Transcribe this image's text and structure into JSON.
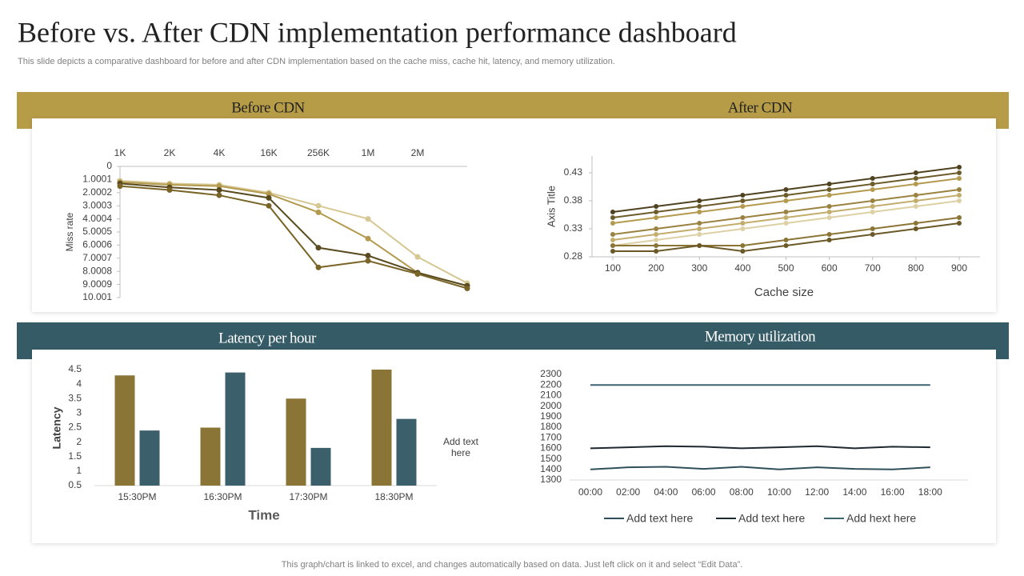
{
  "title": "Before vs. After CDN implementation performance dashboard",
  "subtitle": "This slide depicts a comparative dashboard for before and after CDN implementation based on the cache miss, cache hit, latency, and memory utilization.",
  "footer": "This graph/chart is linked to excel, and changes automatically based on data. Just left click on it and select “Edit Data”.",
  "chart_data": [
    {
      "type": "line",
      "title": "Before CDN",
      "y_label": "Miss rate",
      "y_reversed": true,
      "x_axis_position": "top",
      "categories": [
        "1K",
        "2K",
        "4K",
        "16K",
        "256K",
        "1M",
        "2M",
        null
      ],
      "ylim": [
        0,
        10.001
      ],
      "yticks": [
        0,
        1.0001,
        2.0002,
        3.0003,
        4.0004,
        5.0005,
        6.0006,
        7.0007,
        8.0008,
        9.0009,
        10.001
      ],
      "series": [
        {
          "color": "#d6c894",
          "values": [
            1.1,
            1.3,
            1.4,
            2.0,
            3.0,
            4.0,
            6.9,
            8.9
          ]
        },
        {
          "color": "#b39a4e",
          "values": [
            1.2,
            1.4,
            1.5,
            2.1,
            3.5,
            5.5,
            8.1,
            9.1
          ]
        },
        {
          "color": "#5a4a20",
          "values": [
            1.3,
            1.6,
            1.8,
            2.4,
            6.2,
            6.8,
            8.1,
            9.1
          ]
        },
        {
          "color": "#7a6528",
          "values": [
            1.5,
            1.8,
            2.2,
            3.0,
            7.7,
            7.2,
            8.2,
            9.3
          ]
        }
      ]
    },
    {
      "type": "scatter_line",
      "title": "After CDN",
      "x_label": "Cache size",
      "y_label": "Axis Title",
      "x": [
        100,
        200,
        300,
        400,
        500,
        600,
        700,
        800,
        900
      ],
      "xlim": [
        100,
        900
      ],
      "xticks": [
        100,
        200,
        300,
        400,
        500,
        600,
        700,
        800,
        900
      ],
      "ylim": [
        0.28,
        0.46
      ],
      "yticks": [
        0.28,
        0.33,
        0.38,
        0.43
      ],
      "series": [
        {
          "color": "#4f4220",
          "values": [
            0.36,
            0.37,
            0.38,
            0.39,
            0.4,
            0.41,
            0.42,
            0.43,
            0.44
          ]
        },
        {
          "color": "#6d5c2a",
          "values": [
            0.35,
            0.36,
            0.37,
            0.38,
            0.39,
            0.4,
            0.41,
            0.42,
            0.43
          ]
        },
        {
          "color": "#b39a4e",
          "values": [
            0.34,
            0.35,
            0.36,
            0.37,
            0.38,
            0.39,
            0.4,
            0.41,
            0.42
          ]
        },
        {
          "color": "#9a8240",
          "values": [
            0.32,
            0.33,
            0.34,
            0.35,
            0.36,
            0.37,
            0.38,
            0.39,
            0.4
          ]
        },
        {
          "color": "#c2ad6c",
          "values": [
            0.31,
            0.32,
            0.33,
            0.34,
            0.35,
            0.36,
            0.37,
            0.38,
            0.39
          ]
        },
        {
          "color": "#ddd0a4",
          "values": [
            0.3,
            0.31,
            0.32,
            0.33,
            0.34,
            0.35,
            0.36,
            0.37,
            0.38
          ]
        },
        {
          "color": "#8b7536",
          "values": [
            0.3,
            0.3,
            0.3,
            0.3,
            0.31,
            0.32,
            0.33,
            0.34,
            0.35
          ]
        },
        {
          "color": "#6a5826",
          "values": [
            0.29,
            0.29,
            0.3,
            0.29,
            0.3,
            0.31,
            0.32,
            0.33,
            0.34
          ]
        }
      ]
    },
    {
      "type": "bar",
      "title": "Latency per hour",
      "x_label": "Time",
      "y_label": "Latency",
      "annotation": "Add text here",
      "categories": [
        "15:30PM",
        "16:30PM",
        "17:30PM",
        "18:30PM"
      ],
      "ylim": [
        0.5,
        4.5
      ],
      "yticks": [
        0.5,
        1,
        1.5,
        2,
        2.5,
        3,
        3.5,
        4,
        4.5
      ],
      "series": [
        {
          "color": "#8b7536",
          "values": [
            4.3,
            2.5,
            3.5,
            4.5
          ]
        },
        {
          "color": "#3b5f6b",
          "values": [
            2.4,
            4.4,
            1.8,
            2.8
          ]
        }
      ]
    },
    {
      "type": "line",
      "title": "Memory utilization",
      "categories": [
        "00:00",
        "02:00",
        "04:00",
        "06:00",
        "08:00",
        "10:00",
        "12:00",
        "14:00",
        "16:00",
        "18:00"
      ],
      "ylim": [
        1300,
        2300
      ],
      "yticks": [
        1300,
        1400,
        1500,
        1600,
        1700,
        1800,
        1900,
        2000,
        2100,
        2200,
        2300
      ],
      "series": [
        {
          "name": "Add text here",
          "color": "#2f4f5a",
          "values": [
            1400,
            1420,
            1425,
            1405,
            1425,
            1400,
            1420,
            1405,
            1400,
            1420
          ]
        },
        {
          "name": "Add text here",
          "color": "#1e2a30",
          "values": [
            1600,
            1610,
            1620,
            1615,
            1600,
            1610,
            1620,
            1600,
            1615,
            1610
          ]
        },
        {
          "name": "Add hext here",
          "color": "#3d6470",
          "values": [
            2200,
            2200,
            2200,
            2200,
            2200,
            2200,
            2200,
            2200,
            2200,
            2200
          ]
        }
      ]
    }
  ]
}
